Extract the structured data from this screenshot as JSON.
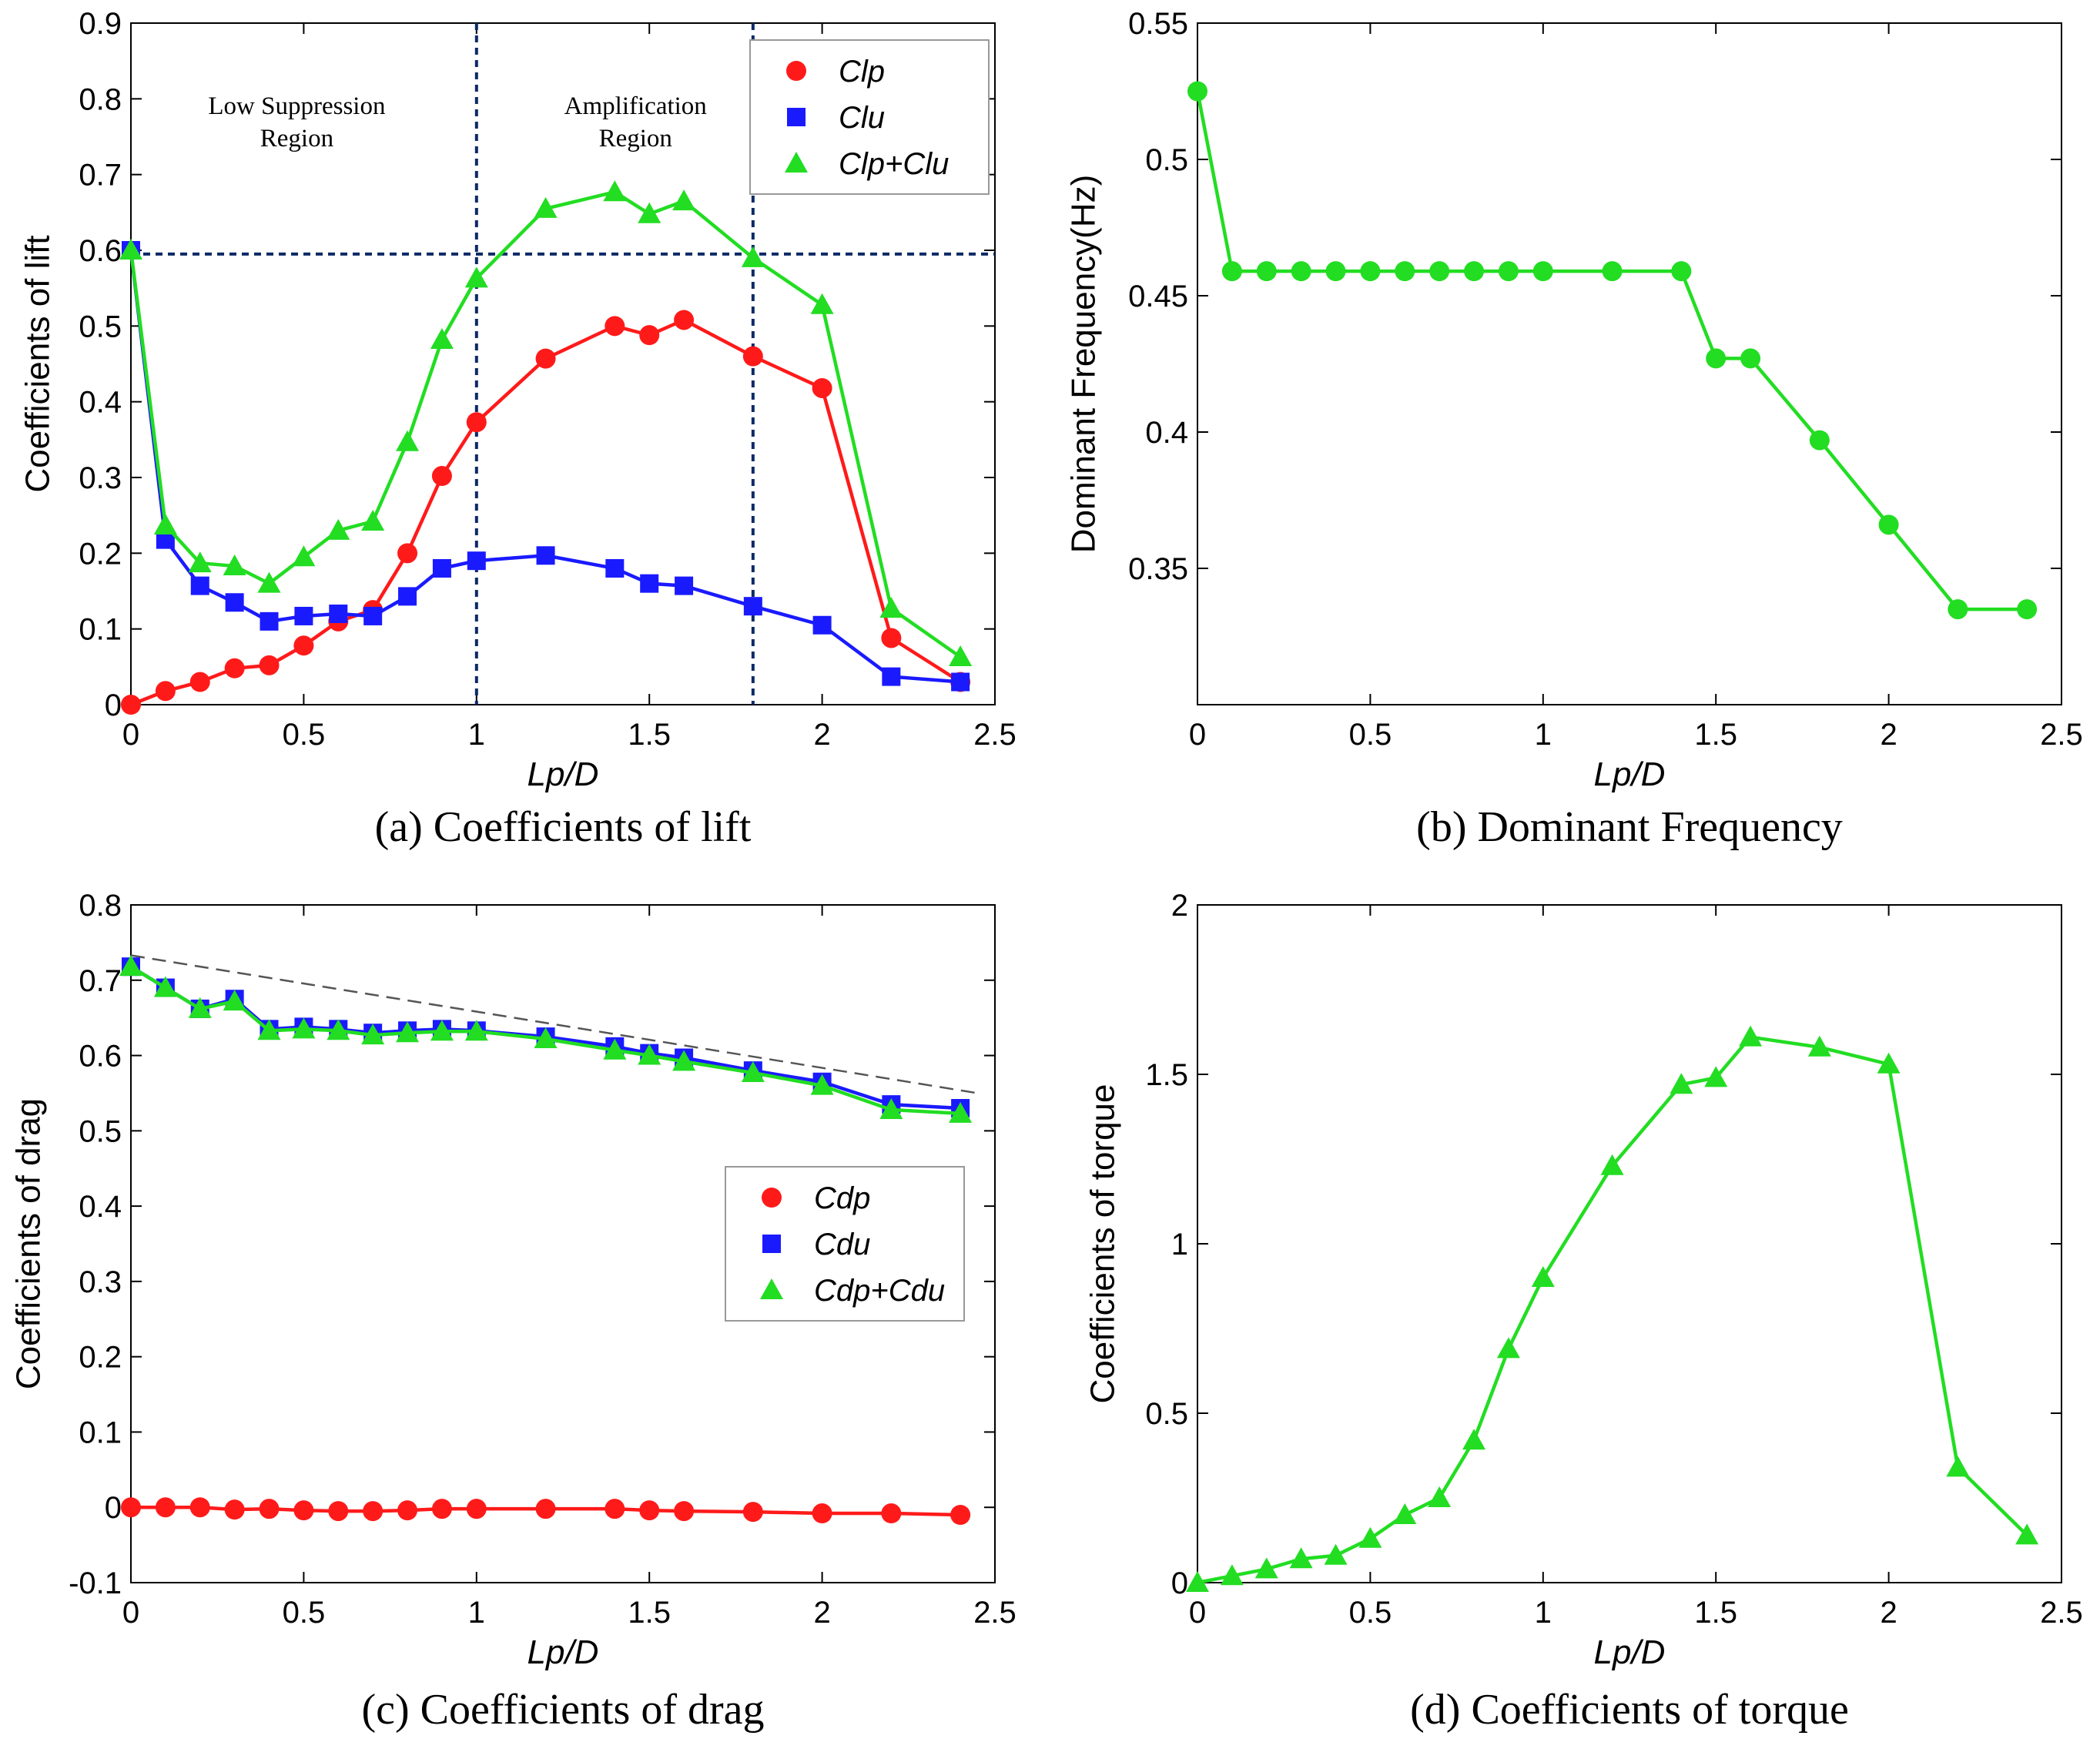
{
  "chart_data": [
    {
      "id": "a",
      "type": "line",
      "caption": "(a) Coefficients of lift",
      "xlabel": "Lp/D",
      "ylabel": "Coefficients of lift",
      "xlim": [
        0,
        2.5
      ],
      "ylim": [
        0,
        0.9
      ],
      "xticks": [
        "0",
        "0.5",
        "1",
        "1.5",
        "2",
        "2.5"
      ],
      "xtick_values": [
        0,
        0.5,
        1,
        1.5,
        2,
        2.5
      ],
      "yticks": [
        "0",
        "0.1",
        "0.2",
        "0.3",
        "0.4",
        "0.5",
        "0.6",
        "0.7",
        "0.8",
        "0.9"
      ],
      "ytick_values": [
        0,
        0.1,
        0.2,
        0.3,
        0.4,
        0.5,
        0.6,
        0.7,
        0.8,
        0.9
      ],
      "x": [
        0,
        0.1,
        0.2,
        0.3,
        0.4,
        0.5,
        0.6,
        0.7,
        0.8,
        0.9,
        1.0,
        1.2,
        1.4,
        1.5,
        1.6,
        1.8,
        2.0,
        2.2,
        2.4
      ],
      "series": [
        {
          "name": "Clp",
          "color": "#ff1a1a",
          "marker": "circle",
          "values": [
            0.0,
            0.018,
            0.03,
            0.048,
            0.052,
            0.078,
            0.11,
            0.125,
            0.2,
            0.302,
            0.373,
            0.457,
            0.5,
            0.488,
            0.508,
            0.46,
            0.418,
            0.088,
            0.03
          ]
        },
        {
          "name": "Clu",
          "color": "#1a1aff",
          "marker": "square",
          "values": [
            0.6,
            0.218,
            0.157,
            0.135,
            0.11,
            0.117,
            0.12,
            0.117,
            0.143,
            0.18,
            0.19,
            0.197,
            0.18,
            0.16,
            0.157,
            0.13,
            0.105,
            0.037,
            0.03
          ]
        },
        {
          "name": "Clp+Clu",
          "color": "#22dd22",
          "marker": "triangle",
          "values": [
            0.6,
            0.237,
            0.187,
            0.183,
            0.16,
            0.195,
            0.23,
            0.242,
            0.347,
            0.482,
            0.563,
            0.655,
            0.677,
            0.648,
            0.665,
            0.59,
            0.528,
            0.127,
            0.063
          ]
        }
      ],
      "legend_position": "top-right",
      "reference_lines": {
        "vertical_x": [
          1.0,
          1.8
        ],
        "horizontal_y": [
          0.595
        ]
      },
      "annotations": [
        {
          "lines": [
            "Low Suppression",
            "Region"
          ],
          "x": 0.48,
          "y": 0.78
        },
        {
          "lines": [
            "Amplification",
            "Region"
          ],
          "x": 1.46,
          "y": 0.78
        }
      ]
    },
    {
      "id": "b",
      "type": "line",
      "caption": "(b) Dominant Frequency",
      "xlabel": "Lp/D",
      "ylabel": "Dominant Frequency(Hz)",
      "xlim": [
        0,
        2.5
      ],
      "ylim": [
        0.3,
        0.55
      ],
      "xticks": [
        "0",
        "0.5",
        "1",
        "1.5",
        "2",
        "2.5"
      ],
      "xtick_values": [
        0,
        0.5,
        1,
        1.5,
        2,
        2.5
      ],
      "yticks": [
        "0.35",
        "0.4",
        "0.45",
        "0.5",
        "0.55"
      ],
      "ytick_values": [
        0.35,
        0.4,
        0.45,
        0.5,
        0.55
      ],
      "x": [
        0,
        0.1,
        0.2,
        0.3,
        0.4,
        0.5,
        0.6,
        0.7,
        0.8,
        0.9,
        1.0,
        1.2,
        1.4,
        1.5,
        1.6,
        1.8,
        2.0,
        2.2,
        2.4
      ],
      "series": [
        {
          "name": "Dominant Frequency",
          "color": "#22dd22",
          "marker": "circle",
          "values": [
            0.525,
            0.459,
            0.459,
            0.459,
            0.459,
            0.459,
            0.459,
            0.459,
            0.459,
            0.459,
            0.459,
            0.459,
            0.459,
            0.427,
            0.427,
            0.397,
            0.366,
            0.335,
            0.335
          ]
        }
      ]
    },
    {
      "id": "c",
      "type": "line",
      "caption": "(c) Coefficients of drag",
      "xlabel": "Lp/D",
      "ylabel": "Coefficients of drag",
      "xlim": [
        0,
        2.5
      ],
      "ylim": [
        -0.1,
        0.8
      ],
      "xticks": [
        "0",
        "0.5",
        "1",
        "1.5",
        "2",
        "2.5"
      ],
      "xtick_values": [
        0,
        0.5,
        1,
        1.5,
        2,
        2.5
      ],
      "yticks": [
        "-0.1",
        "0",
        "0.1",
        "0.2",
        "0.3",
        "0.4",
        "0.5",
        "0.6",
        "0.7",
        "0.8"
      ],
      "ytick_values": [
        -0.1,
        0,
        0.1,
        0.2,
        0.3,
        0.4,
        0.5,
        0.6,
        0.7,
        0.8
      ],
      "x": [
        0,
        0.1,
        0.2,
        0.3,
        0.4,
        0.5,
        0.6,
        0.7,
        0.8,
        0.9,
        1.0,
        1.2,
        1.4,
        1.5,
        1.6,
        1.8,
        2.0,
        2.2,
        2.4
      ],
      "series": [
        {
          "name": "Cdp",
          "color": "#ff1a1a",
          "marker": "circle",
          "values": [
            0.0,
            0.0,
            0.0,
            -0.003,
            -0.002,
            -0.004,
            -0.005,
            -0.005,
            -0.004,
            -0.002,
            -0.002,
            -0.002,
            -0.002,
            -0.004,
            -0.005,
            -0.006,
            -0.008,
            -0.008,
            -0.01
          ]
        },
        {
          "name": "Cdu",
          "color": "#1a1aff",
          "marker": "square",
          "values": [
            0.718,
            0.69,
            0.662,
            0.675,
            0.635,
            0.638,
            0.635,
            0.63,
            0.633,
            0.635,
            0.633,
            0.625,
            0.612,
            0.603,
            0.597,
            0.58,
            0.565,
            0.535,
            0.53
          ]
        },
        {
          "name": "Cdp+Cdu",
          "color": "#22dd22",
          "marker": "triangle",
          "values": [
            0.718,
            0.69,
            0.662,
            0.672,
            0.633,
            0.635,
            0.633,
            0.627,
            0.63,
            0.632,
            0.632,
            0.622,
            0.607,
            0.6,
            0.592,
            0.577,
            0.56,
            0.528,
            0.523
          ]
        }
      ],
      "legend_position": "center-right",
      "reference_lines": {
        "dashed_trend": [
          [
            0,
            0.733
          ],
          [
            2.45,
            0.55
          ]
        ]
      }
    },
    {
      "id": "d",
      "type": "line",
      "caption": "(d) Coefficients of torque",
      "xlabel": "Lp/D",
      "ylabel": "Coefficients of torque",
      "xlim": [
        0,
        2.5
      ],
      "ylim": [
        0,
        2
      ],
      "xticks": [
        "0",
        "0.5",
        "1",
        "1.5",
        "2",
        "2.5"
      ],
      "xtick_values": [
        0,
        0.5,
        1,
        1.5,
        2,
        2.5
      ],
      "yticks": [
        "0",
        "0.5",
        "1",
        "1.5",
        "2"
      ],
      "ytick_values": [
        0,
        0.5,
        1,
        1.5,
        2
      ],
      "x": [
        0,
        0.1,
        0.2,
        0.3,
        0.4,
        0.5,
        0.6,
        0.7,
        0.8,
        0.9,
        1.0,
        1.2,
        1.4,
        1.5,
        1.6,
        1.8,
        2.0,
        2.2,
        2.4
      ],
      "series": [
        {
          "name": "Coefficients of torque",
          "color": "#22dd22",
          "marker": "triangle",
          "values": [
            0.0,
            0.02,
            0.04,
            0.07,
            0.08,
            0.13,
            0.2,
            0.25,
            0.42,
            0.69,
            0.9,
            1.23,
            1.47,
            1.49,
            1.61,
            1.58,
            1.53,
            0.34,
            0.14
          ]
        }
      ]
    }
  ]
}
